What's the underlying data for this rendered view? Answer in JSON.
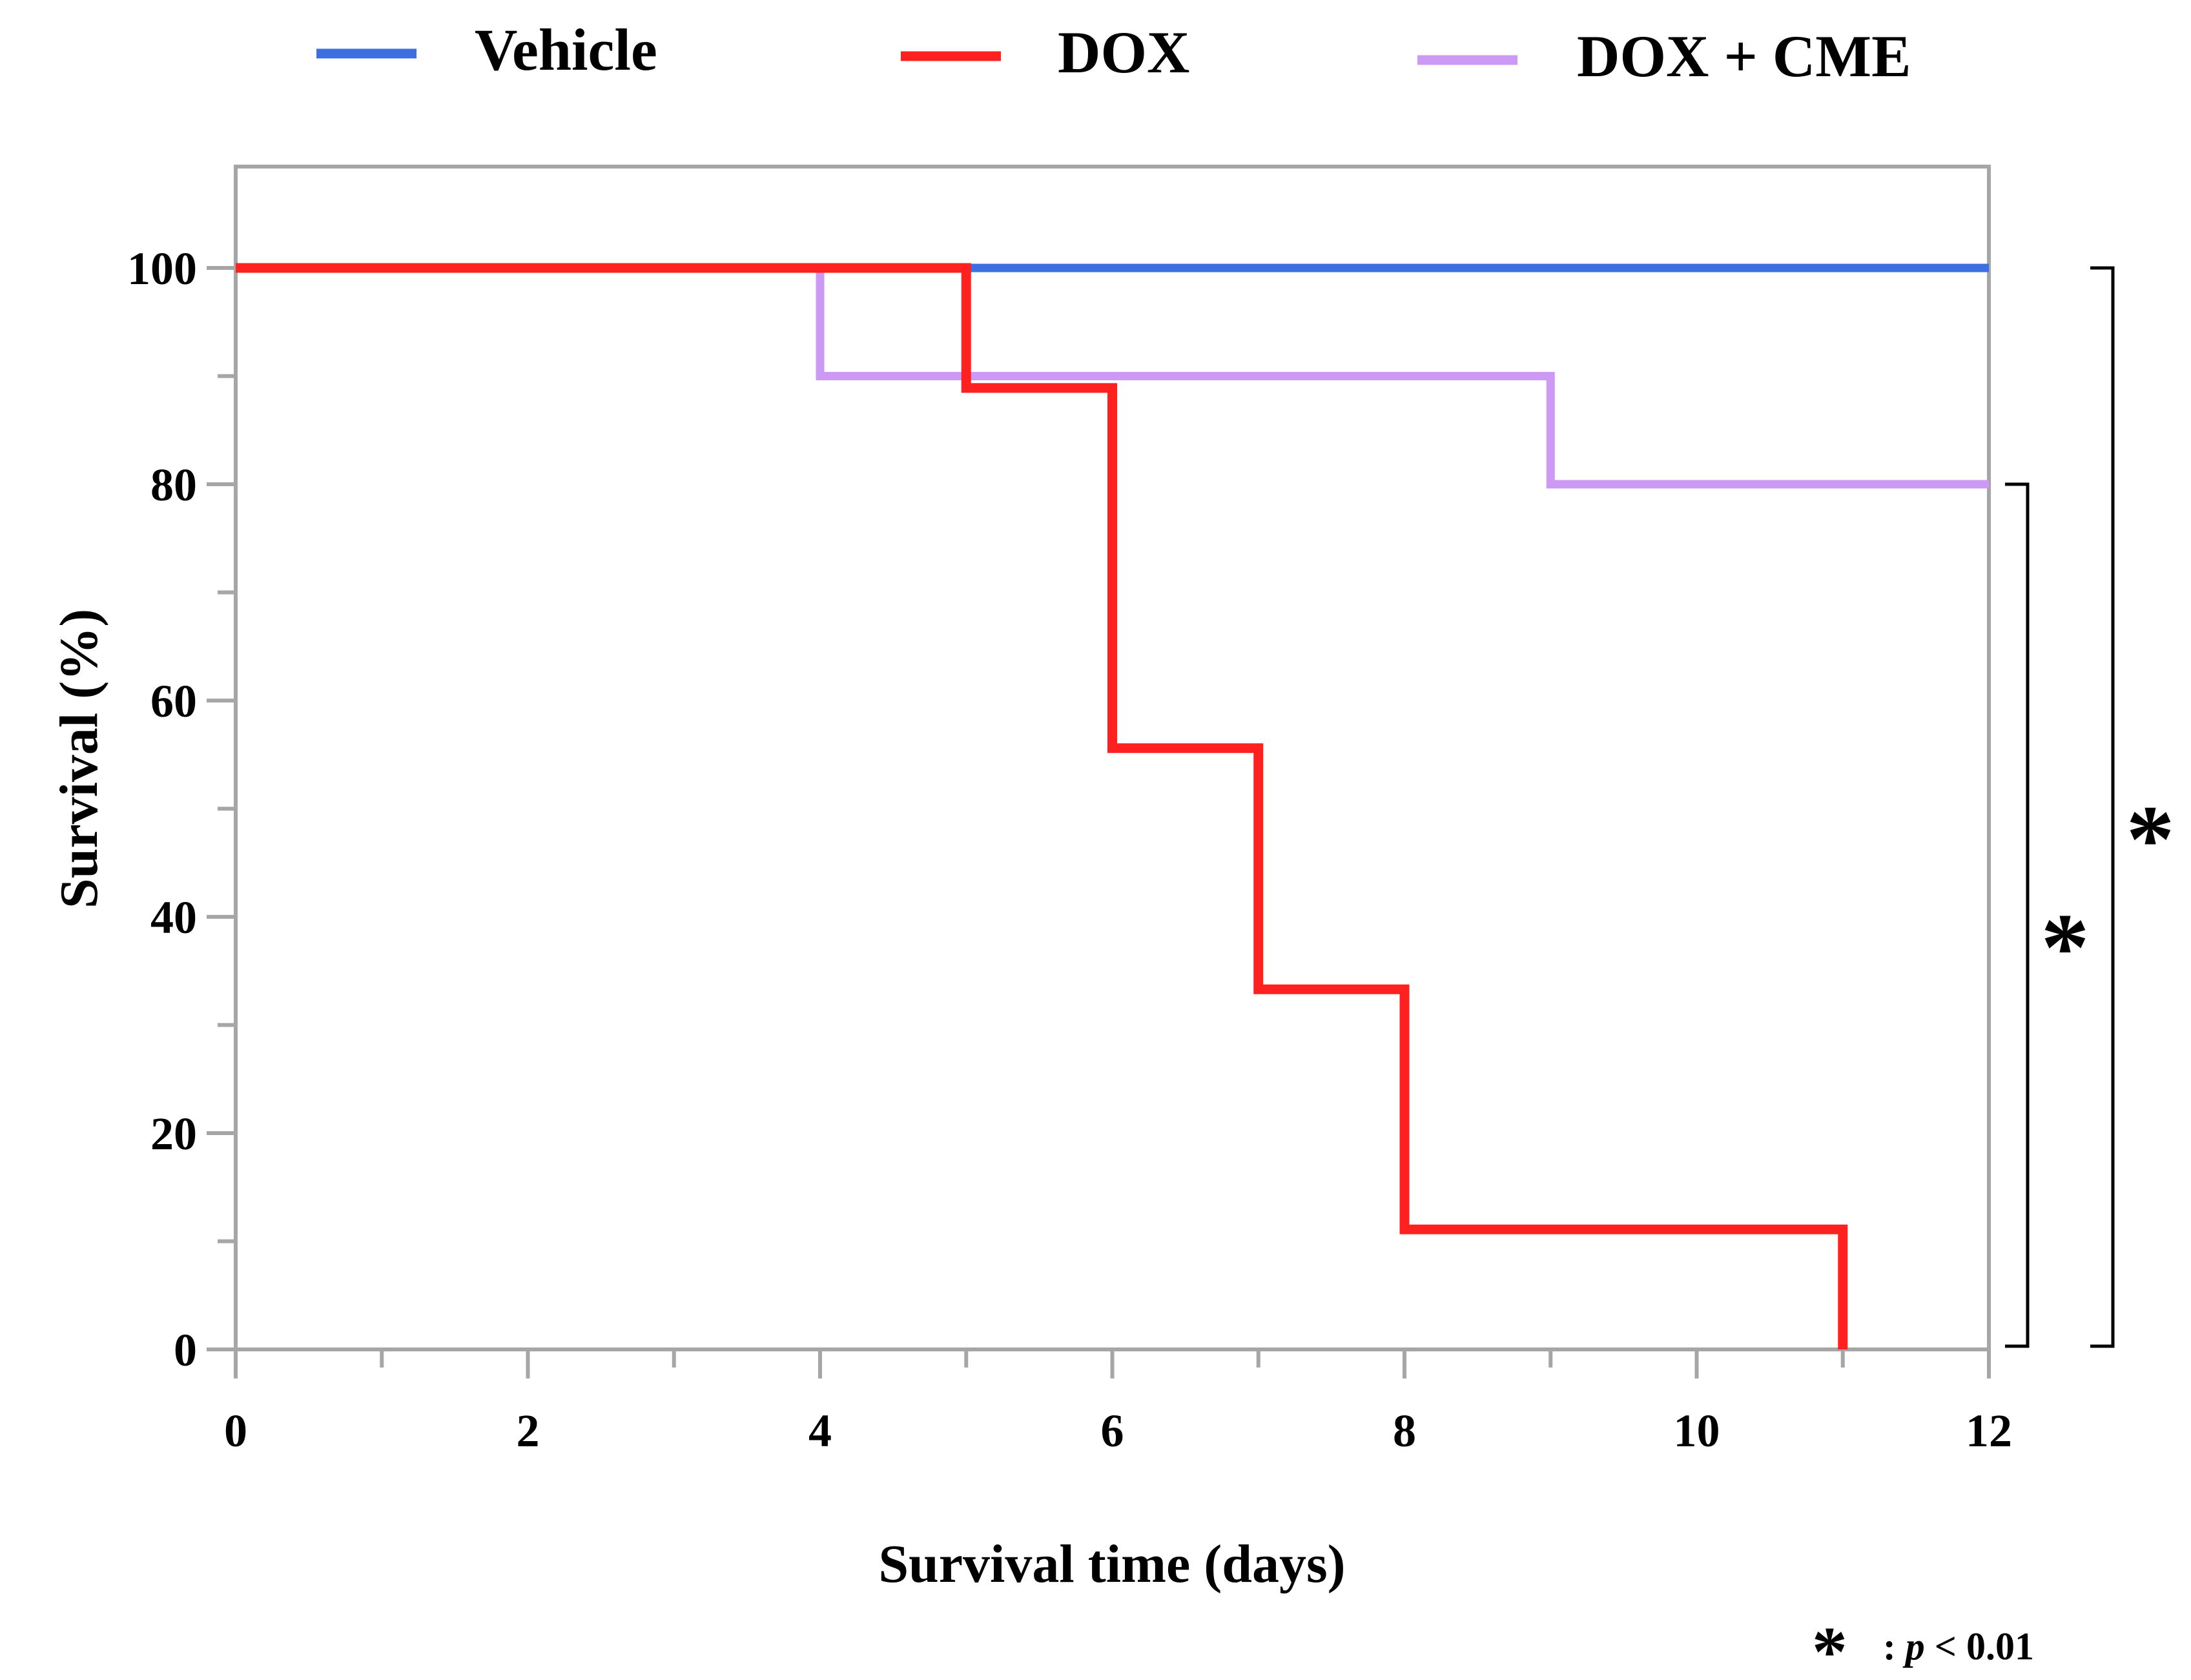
{
  "chart_data": {
    "type": "line",
    "step": true,
    "title": "",
    "xlabel": "Survival time (days)",
    "ylabel": "Survival (%)",
    "xlim": [
      0,
      12
    ],
    "ylim": [
      0,
      110
    ],
    "x_ticks": [
      0,
      2,
      4,
      6,
      8,
      10,
      12
    ],
    "y_ticks": [
      0,
      20,
      40,
      60,
      80,
      100
    ],
    "grid": false,
    "legend_position": "top",
    "series": [
      {
        "name": "Vehicle",
        "color": "#3d6fe0",
        "x": [
          0,
          12
        ],
        "y": [
          100,
          100
        ]
      },
      {
        "name": "DOX",
        "color": "#ff2020",
        "x": [
          0,
          5,
          6,
          7,
          8,
          11
        ],
        "y": [
          100,
          88.9,
          55.6,
          33.3,
          11.1,
          0
        ]
      },
      {
        "name": "DOX + CME",
        "color": "#cc99f5",
        "x": [
          0,
          4,
          9,
          12
        ],
        "y": [
          100,
          90,
          80,
          80
        ]
      }
    ],
    "significance": [
      {
        "label": "*",
        "between": [
          "DOX + CME",
          "DOX"
        ],
        "y_range": [
          0,
          80
        ]
      },
      {
        "label": "*",
        "between": [
          "Vehicle",
          "DOX"
        ],
        "y_range": [
          0,
          100
        ]
      }
    ],
    "footnote": {
      "star": "*",
      "text_prefix": ": ",
      "p_symbol": "p",
      "text_suffix": " < 0.01"
    }
  }
}
